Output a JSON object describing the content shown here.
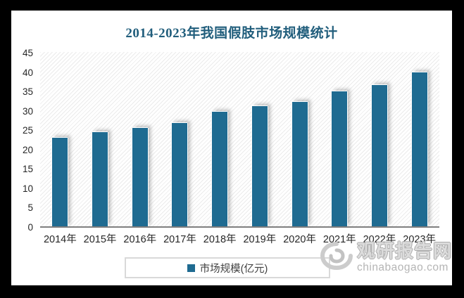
{
  "window": {
    "frame_color": "#000000",
    "canvas_color": "#ffffff"
  },
  "colors": {
    "bar": "#1f6b91",
    "title": "#215e7c",
    "axis_text": "#262626",
    "legend_border": "#d9d9d9",
    "watermark_gray": "#b5b5b5"
  },
  "chart_data": {
    "type": "bar",
    "title": "2014-2023年我国假肢市场规模统计",
    "categories": [
      "2014年",
      "2015年",
      "2016年",
      "2017年",
      "2018年",
      "2019年",
      "2020年",
      "2021年",
      "2022年",
      "2023年"
    ],
    "series": [
      {
        "name": "市场规模(亿元)",
        "values": [
          22.8,
          24.4,
          25.4,
          26.7,
          29.5,
          31.0,
          32.2,
          34.8,
          36.5,
          39.7
        ]
      }
    ],
    "xlabel": "",
    "ylabel": "",
    "ylim": [
      0,
      45
    ],
    "yticks": [
      0,
      5,
      10,
      15,
      20,
      25,
      30,
      35,
      40,
      45
    ],
    "grid": false,
    "legend_position": "bottom",
    "plot_background": "diagonal-hatch"
  },
  "legend": {
    "label": "市场规模(亿元)"
  },
  "watermark": {
    "logo": "swirl-eye-logo",
    "site_name": "观研报告网",
    "site_url": "chinabaogao.com"
  }
}
